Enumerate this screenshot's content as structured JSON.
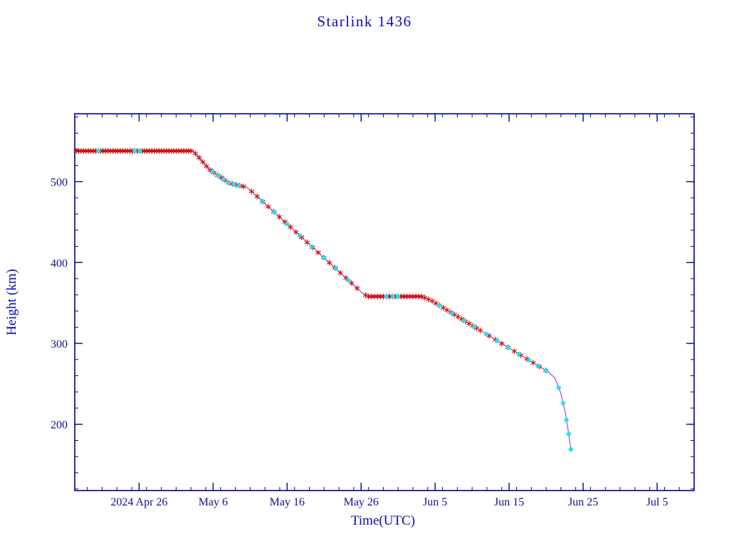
{
  "chart_data": {
    "type": "line",
    "title": "Starlink 1436",
    "xlabel": "Time(UTC)",
    "ylabel": "Height (km)",
    "x_unit": "days since 2024-04-15",
    "x_range": [
      2.3,
      86.0
    ],
    "y_range": [
      118,
      584
    ],
    "x_ticks": [
      {
        "label": "2024 Apr 26",
        "day": 11
      },
      {
        "label": "May 6",
        "day": 21
      },
      {
        "label": "May 16",
        "day": 31
      },
      {
        "label": "May 26",
        "day": 41
      },
      {
        "label": "Jun 5",
        "day": 51
      },
      {
        "label": "Jun 15",
        "day": 61
      },
      {
        "label": "Jun 25",
        "day": 71
      },
      {
        "label": "Jul 5",
        "day": 81
      }
    ],
    "y_ticks": [
      200,
      300,
      400,
      500
    ],
    "x_minor_step_days": 2,
    "y_minor_step_km": 20,
    "frame_color": "#00008B",
    "line_color": "#a050c8",
    "red_marker_color": "#cc1111",
    "cyan_marker_color": "#26dfee",
    "height_profile": [
      [
        2.4,
        538
      ],
      [
        18.3,
        538
      ],
      [
        20.5,
        515
      ],
      [
        23.2,
        498
      ],
      [
        25.6,
        493
      ],
      [
        41.2,
        362
      ],
      [
        41.9,
        358
      ],
      [
        49.2,
        358
      ],
      [
        50.5,
        353
      ],
      [
        66.4,
        264
      ],
      [
        67.2,
        257
      ],
      [
        68.0,
        238
      ],
      [
        68.6,
        214
      ],
      [
        69.0,
        191
      ],
      [
        69.35,
        169
      ]
    ],
    "red_marker_day_ranges": [
      {
        "from": 2.5,
        "to": 18.3,
        "step": 0.33
      },
      {
        "from": 18.6,
        "to": 25.4,
        "step": 0.5
      },
      {
        "from": 26.2,
        "to": 41.0,
        "step": 0.75
      },
      {
        "from": 41.6,
        "to": 49.2,
        "step": 0.4
      },
      {
        "from": 49.6,
        "to": 57.5,
        "step": 0.5
      },
      {
        "from": 58.3,
        "to": 66.6,
        "step": 0.85
      }
    ],
    "cyan_marker_days": [
      5.5,
      10.4,
      11.1,
      20.9,
      21.7,
      22.4,
      23.1,
      23.8,
      24.5,
      27.6,
      29.3,
      31.0,
      32.7,
      34.3,
      36.0,
      37.6,
      39.3,
      44.4,
      45.3,
      46.0,
      51.6,
      53.3,
      54.9,
      56.3,
      57.9,
      59.4,
      60.9,
      62.3,
      63.7,
      64.9,
      66.0,
      67.7,
      68.3,
      68.75,
      69.05,
      69.35
    ]
  }
}
